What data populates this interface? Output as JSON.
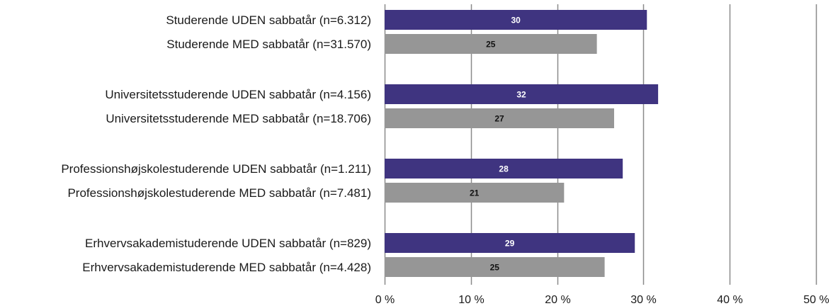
{
  "chart_data": {
    "type": "bar",
    "orientation": "horizontal",
    "categories": [
      "Studerende UDEN sabbatår (n=6.312)",
      "Studerende MED sabbatår  (n=31.570)",
      "Universitetsstuderende UDEN sabbatår (n=4.156)",
      "Universitetsstuderende MED sabbatår (n=18.706)",
      "Professionshøjskolestuderende UDEN sabbatår  (n=1.211)",
      "Professionshøjskolestuderende MED sabbatår (n=7.481)",
      "Erhvervsakademistuderende UDEN sabbatår  (n=829)",
      "Erhvervsakademistuderende MED sabbatår (n=4.428)"
    ],
    "values": [
      30.4,
      24.6,
      31.7,
      26.6,
      27.6,
      20.8,
      29.0,
      25.5
    ],
    "data_labels": [
      "30",
      "25",
      "32",
      "27",
      "28",
      "21",
      "29",
      "25"
    ],
    "bar_kind": [
      "uden",
      "med",
      "uden",
      "med",
      "uden",
      "med",
      "uden",
      "med"
    ],
    "xlim": [
      0,
      50
    ],
    "x_ticks": [
      0,
      10,
      20,
      30,
      40,
      50
    ],
    "x_tick_labels": [
      "0 %",
      "10 %",
      "20 %",
      "30 %",
      "40 %",
      "50 %"
    ],
    "grid": true,
    "title": "",
    "xlabel": "",
    "ylabel": ""
  },
  "colors": {
    "uden": "#3f3480",
    "med": "#969696",
    "uden_label": "#ffffff",
    "med_label": "#111111",
    "grid": "#8a8a8a"
  }
}
